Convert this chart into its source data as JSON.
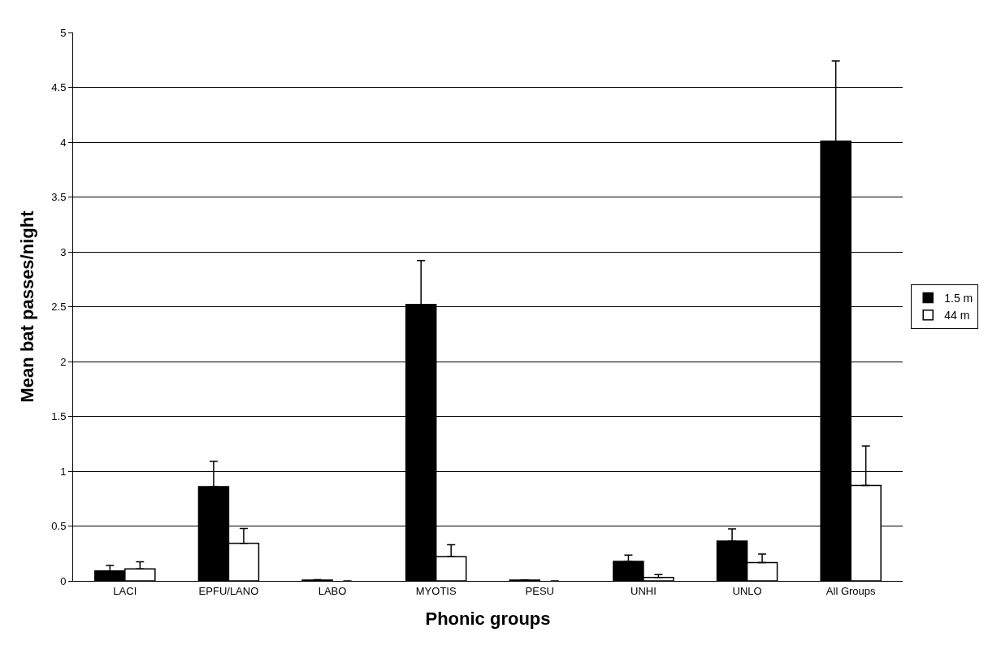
{
  "chart_data": {
    "type": "bar",
    "xlabel": "Phonic groups",
    "ylabel": "Mean bat passes/night",
    "categories": [
      "LACI",
      "EPFU/LANO",
      "LABO",
      "MYOTIS",
      "PESU",
      "UNHI",
      "UNLO",
      "All Groups"
    ],
    "series": [
      {
        "name": "1.5 m",
        "color": "#000000",
        "values": [
          0.09,
          0.86,
          0.008,
          2.52,
          0.007,
          0.177,
          0.363,
          4.01
        ],
        "errors": [
          [
            0.09,
            0.14
          ],
          [
            0.86,
            1.09
          ],
          [
            0.008,
            0.012
          ],
          [
            2.52,
            2.92
          ],
          [
            0.007,
            0.01
          ],
          [
            0.177,
            0.236
          ],
          [
            0.363,
            0.474
          ],
          [
            4.01,
            4.74
          ]
        ]
      },
      {
        "name": "44 m",
        "color": "#ffffff",
        "values": [
          0.11,
          0.343,
          0,
          0.22,
          0,
          0.031,
          0.167,
          0.87
        ],
        "errors": [
          [
            0.11,
            0.174
          ],
          [
            0.343,
            0.477
          ],
          null,
          [
            0.22,
            0.33
          ],
          null,
          [
            0.031,
            0.057
          ],
          [
            0.167,
            0.245
          ],
          [
            0.87,
            1.23
          ]
        ]
      }
    ],
    "ylim": [
      0,
      5
    ],
    "yticks": [
      0,
      0.5,
      1,
      1.5,
      2,
      2.5,
      3,
      3.5,
      4,
      4.5,
      5
    ],
    "grid": "y",
    "legend": "right"
  }
}
